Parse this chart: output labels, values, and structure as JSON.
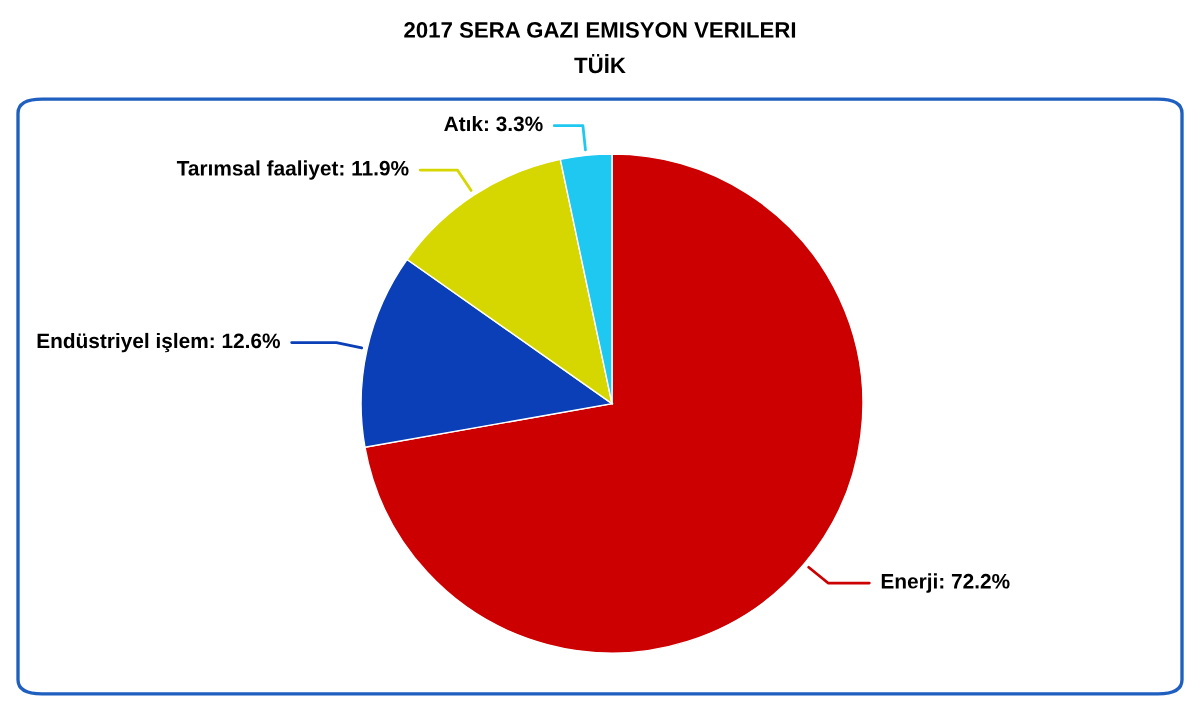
{
  "chart_data": {
    "type": "pie",
    "title": "2017 SERA GAZI EMISYON VERILERI",
    "subtitle": "TÜİK",
    "categories": [
      "Enerji",
      "Endüstriyel işlem",
      "Tarımsal faaliyet",
      "Atık"
    ],
    "values": [
      72.2,
      12.6,
      11.9,
      3.3
    ],
    "value_labels": [
      "72.2%",
      "12.6%",
      "11.9%",
      "3.3%"
    ],
    "colors": [
      "#cc0000",
      "#0b3fb8",
      "#d6d600",
      "#1ec8f0"
    ],
    "legend": false
  }
}
